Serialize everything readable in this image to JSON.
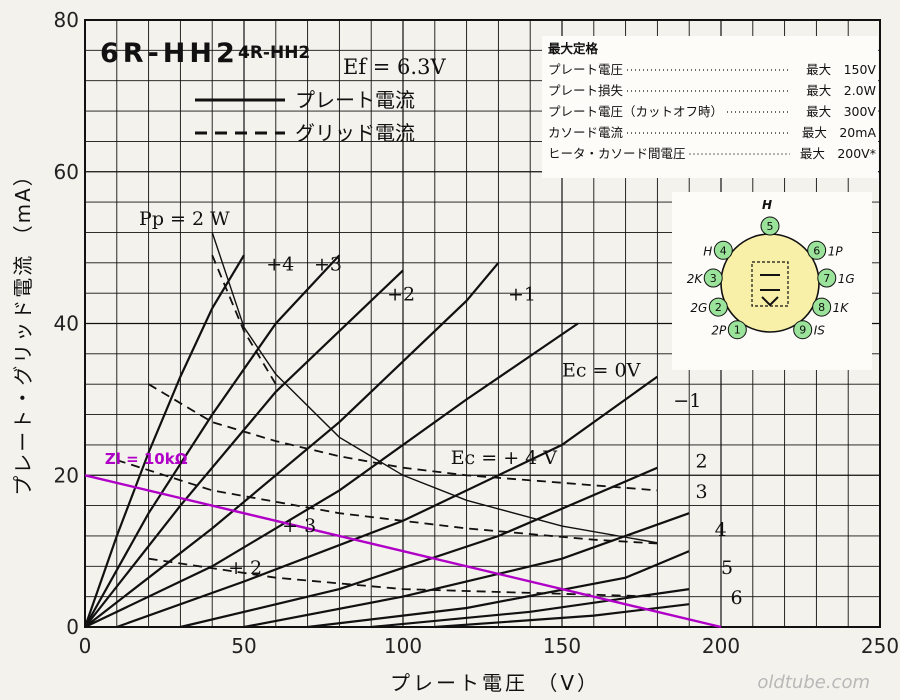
{
  "chart_data": {
    "type": "line",
    "title": "6R-HH2",
    "subtitle": "4R-HH2",
    "filament": "Ef = 6.3V",
    "xlabel": "プレート電圧 （V）",
    "ylabel": "プレート・グリッド電流 （mA）",
    "xlim": [
      0,
      250
    ],
    "ylim": [
      0,
      80
    ],
    "x_ticks": [
      "0",
      "50",
      "100",
      "150",
      "200",
      "250"
    ],
    "y_ticks": [
      "0",
      "20",
      "40",
      "60",
      "80"
    ],
    "grid": true,
    "legend": {
      "position": "top-left",
      "entries": [
        {
          "style": "solid",
          "label": "プレート電流"
        },
        {
          "style": "dashed",
          "label": "グリッド電流"
        }
      ]
    },
    "plate_series": [
      {
        "label": "+4",
        "x": [
          0,
          10,
          20,
          30,
          40,
          50
        ],
        "y": [
          0,
          12,
          23,
          33,
          42,
          49
        ],
        "label_pos": [
          57,
          47
        ]
      },
      {
        "label": "+3",
        "x": [
          0,
          20,
          40,
          60,
          80
        ],
        "y": [
          0,
          15,
          28,
          40,
          49
        ],
        "label_pos": [
          72,
          47
        ]
      },
      {
        "label": "+2",
        "x": [
          0,
          30,
          60,
          90,
          100
        ],
        "y": [
          0,
          16,
          31,
          43,
          47
        ],
        "label_pos": [
          95,
          43
        ]
      },
      {
        "label": "+1",
        "x": [
          0,
          40,
          80,
          120,
          130
        ],
        "y": [
          0,
          13,
          27,
          43,
          48
        ],
        "label_pos": [
          133,
          43
        ]
      },
      {
        "label": "Ec = 0V",
        "x": [
          0,
          40,
          80,
          120,
          155
        ],
        "y": [
          0,
          8,
          18,
          30,
          40
        ],
        "label_pos": [
          150,
          33
        ]
      },
      {
        "label": "−1",
        "x": [
          10,
          50,
          100,
          150,
          180
        ],
        "y": [
          0,
          6,
          14,
          24,
          33
        ],
        "label_pos": [
          185,
          29
        ]
      },
      {
        "label": "2",
        "x": [
          30,
          80,
          130,
          180
        ],
        "y": [
          0,
          5,
          12,
          21
        ],
        "label_pos": [
          192,
          21
        ]
      },
      {
        "label": "3",
        "x": [
          50,
          100,
          150,
          190
        ],
        "y": [
          0,
          4,
          9,
          15
        ],
        "label_pos": [
          192,
          17
        ]
      },
      {
        "label": "4",
        "x": [
          70,
          120,
          170,
          190
        ],
        "y": [
          0,
          2.5,
          6.5,
          10
        ],
        "label_pos": [
          198,
          12
        ]
      },
      {
        "label": "5",
        "x": [
          90,
          140,
          190
        ],
        "y": [
          0,
          2,
          5
        ],
        "label_pos": [
          200,
          7
        ]
      },
      {
        "label": "6",
        "x": [
          110,
          160,
          190
        ],
        "y": [
          0,
          1.5,
          3
        ],
        "label_pos": [
          203,
          3
        ]
      }
    ],
    "grid_series": [
      {
        "label": "Ec = + 4 V",
        "x": [
          20,
          40,
          60,
          80,
          100,
          120,
          150,
          180
        ],
        "y": [
          32,
          27,
          24.5,
          22.5,
          21,
          20,
          19,
          18
        ],
        "label_pos": [
          115,
          21.5
        ]
      },
      {
        "label": "+ 3",
        "x": [
          10,
          40,
          80,
          120,
          160,
          180
        ],
        "y": [
          22,
          18,
          15,
          13,
          11.5,
          11
        ],
        "label_pos": [
          62,
          12.5
        ]
      },
      {
        "label": "+ 2",
        "x": [
          20,
          60,
          100,
          140,
          180
        ],
        "y": [
          9,
          6.5,
          5,
          4.5,
          4
        ],
        "label_pos": [
          45,
          7
        ]
      },
      {
        "label": "Pp dashed",
        "x": [
          40,
          50,
          60
        ],
        "y": [
          49,
          39,
          32
        ],
        "label_pos": null
      }
    ],
    "dissipation_curve": {
      "label": "Pp = 2 W",
      "x": [
        40,
        50,
        60,
        80,
        100,
        120,
        150,
        180
      ],
      "y": [
        52,
        39.5,
        33.3,
        25,
        20,
        16.7,
        13.3,
        11.1
      ],
      "label_pos": [
        17,
        53
      ]
    },
    "load_line": {
      "label": "Zl = 10kΩ",
      "x": [
        0,
        200
      ],
      "y": [
        20,
        0
      ],
      "color": "#b000c8",
      "label_pos": [
        -12,
        21.5
      ]
    }
  },
  "specs": {
    "title": "最大定格",
    "rows": [
      {
        "name": "プレート電圧",
        "value": "最大　150V"
      },
      {
        "name": "プレート損失",
        "value": "最大　2.0W"
      },
      {
        "name": "プレート電圧（カットオフ時）",
        "value": "最大　300V"
      },
      {
        "name": "カソード電流",
        "value": "最大　20mA"
      },
      {
        "name": "ヒータ・カソード間電圧",
        "value": "最大　200V*"
      }
    ]
  },
  "pinout": {
    "top_label": "H",
    "pins": [
      {
        "num": "1",
        "name": "2P"
      },
      {
        "num": "2",
        "name": "2G"
      },
      {
        "num": "3",
        "name": "2K"
      },
      {
        "num": "4",
        "name": "H"
      },
      {
        "num": "5",
        "name": ""
      },
      {
        "num": "6",
        "name": "1P"
      },
      {
        "num": "7",
        "name": "1G"
      },
      {
        "num": "8",
        "name": "1K"
      },
      {
        "num": "9",
        "name": "IS"
      }
    ],
    "pin_color": "#9be39b",
    "base_color": "#f8f0a8"
  },
  "watermark": "oldtube.com"
}
